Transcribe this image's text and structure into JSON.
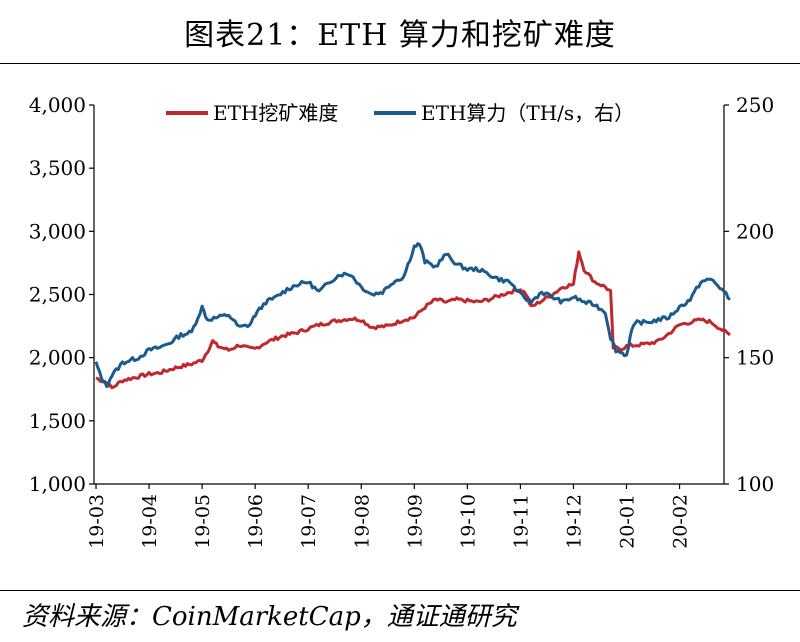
{
  "title": "图表21：ETH 算力和挖矿难度",
  "source": "资料来源：CoinMarketCap，通证通研究",
  "colors": {
    "difficulty": "#C0282D",
    "hashrate": "#1A5A8C",
    "axis": "#000000"
  },
  "chart_data": {
    "type": "line",
    "x_labels": [
      "19-03",
      "19-04",
      "19-05",
      "19-06",
      "19-07",
      "19-08",
      "19-09",
      "19-10",
      "19-11",
      "19-12",
      "20-01",
      "20-02"
    ],
    "y_left": {
      "min": 1000,
      "max": 4000,
      "ticks": [
        "1,000",
        "1,500",
        "2,000",
        "2,500",
        "3,000",
        "3,500",
        "4,000"
      ]
    },
    "y_right": {
      "min": 100,
      "max": 250,
      "ticks": [
        "100",
        "150",
        "200",
        "250"
      ]
    },
    "series": [
      {
        "name": "ETH挖矿难度",
        "axis": "left",
        "values": [
          [
            0,
            1840
          ],
          [
            0.2,
            1800
          ],
          [
            0.3,
            1760
          ],
          [
            0.5,
            1820
          ],
          [
            0.8,
            1850
          ],
          [
            1.0,
            1870
          ],
          [
            1.2,
            1880
          ],
          [
            1.5,
            1920
          ],
          [
            1.8,
            1950
          ],
          [
            2.0,
            1980
          ],
          [
            2.1,
            2050
          ],
          [
            2.2,
            2130
          ],
          [
            2.3,
            2090
          ],
          [
            2.5,
            2060
          ],
          [
            2.7,
            2100
          ],
          [
            2.9,
            2070
          ],
          [
            3.0,
            2070
          ],
          [
            3.2,
            2120
          ],
          [
            3.5,
            2170
          ],
          [
            3.8,
            2200
          ],
          [
            4.0,
            2230
          ],
          [
            4.2,
            2260
          ],
          [
            4.5,
            2290
          ],
          [
            4.8,
            2310
          ],
          [
            5.0,
            2300
          ],
          [
            5.2,
            2240
          ],
          [
            5.5,
            2250
          ],
          [
            5.8,
            2300
          ],
          [
            6.0,
            2320
          ],
          [
            6.2,
            2400
          ],
          [
            6.4,
            2460
          ],
          [
            6.6,
            2440
          ],
          [
            6.8,
            2460
          ],
          [
            7.0,
            2450
          ],
          [
            7.2,
            2440
          ],
          [
            7.4,
            2460
          ],
          [
            7.6,
            2490
          ],
          [
            7.8,
            2520
          ],
          [
            8.0,
            2540
          ],
          [
            8.1,
            2510
          ],
          [
            8.2,
            2400
          ],
          [
            8.4,
            2450
          ],
          [
            8.6,
            2500
          ],
          [
            8.8,
            2560
          ],
          [
            9.0,
            2580
          ],
          [
            9.1,
            2840
          ],
          [
            9.2,
            2700
          ],
          [
            9.4,
            2600
          ],
          [
            9.6,
            2560
          ],
          [
            9.7,
            2520
          ],
          [
            9.75,
            2080
          ],
          [
            9.9,
            2070
          ],
          [
            10.0,
            2090
          ],
          [
            10.2,
            2100
          ],
          [
            10.4,
            2110
          ],
          [
            10.6,
            2130
          ],
          [
            10.8,
            2190
          ],
          [
            11.0,
            2260
          ],
          [
            11.2,
            2280
          ],
          [
            11.4,
            2300
          ],
          [
            11.6,
            2280
          ],
          [
            11.8,
            2220
          ],
          [
            11.95,
            2180
          ]
        ]
      },
      {
        "name": "ETH算力（TH/s，右）",
        "axis": "right",
        "values": [
          [
            0,
            148
          ],
          [
            0.1,
            142
          ],
          [
            0.2,
            139
          ],
          [
            0.3,
            143
          ],
          [
            0.5,
            148
          ],
          [
            0.8,
            150
          ],
          [
            1.0,
            153
          ],
          [
            1.2,
            154
          ],
          [
            1.4,
            156
          ],
          [
            1.6,
            159
          ],
          [
            1.8,
            160
          ],
          [
            2.0,
            170
          ],
          [
            2.1,
            165
          ],
          [
            2.3,
            166
          ],
          [
            2.5,
            167
          ],
          [
            2.7,
            162
          ],
          [
            2.9,
            163
          ],
          [
            3.0,
            167
          ],
          [
            3.2,
            172
          ],
          [
            3.4,
            174
          ],
          [
            3.6,
            177
          ],
          [
            3.8,
            179
          ],
          [
            4.0,
            180
          ],
          [
            4.2,
            176
          ],
          [
            4.4,
            180
          ],
          [
            4.6,
            183
          ],
          [
            4.8,
            183
          ],
          [
            5.0,
            178
          ],
          [
            5.2,
            175
          ],
          [
            5.4,
            176
          ],
          [
            5.6,
            180
          ],
          [
            5.8,
            182
          ],
          [
            6.0,
            194
          ],
          [
            6.1,
            195
          ],
          [
            6.2,
            188
          ],
          [
            6.4,
            186
          ],
          [
            6.6,
            191
          ],
          [
            6.8,
            187
          ],
          [
            7.0,
            185
          ],
          [
            7.2,
            185
          ],
          [
            7.4,
            183
          ],
          [
            7.6,
            181
          ],
          [
            7.8,
            180
          ],
          [
            8.0,
            175
          ],
          [
            8.2,
            172
          ],
          [
            8.4,
            176
          ],
          [
            8.6,
            174
          ],
          [
            8.8,
            172
          ],
          [
            9.0,
            174
          ],
          [
            9.2,
            172
          ],
          [
            9.4,
            171
          ],
          [
            9.6,
            168
          ],
          [
            9.7,
            158
          ],
          [
            9.8,
            153
          ],
          [
            10.0,
            151
          ],
          [
            10.1,
            161
          ],
          [
            10.2,
            164
          ],
          [
            10.4,
            164
          ],
          [
            10.6,
            165
          ],
          [
            10.8,
            166
          ],
          [
            11.0,
            170
          ],
          [
            11.2,
            173
          ],
          [
            11.4,
            180
          ],
          [
            11.6,
            181
          ],
          [
            11.8,
            177
          ],
          [
            11.95,
            173
          ]
        ]
      }
    ]
  }
}
